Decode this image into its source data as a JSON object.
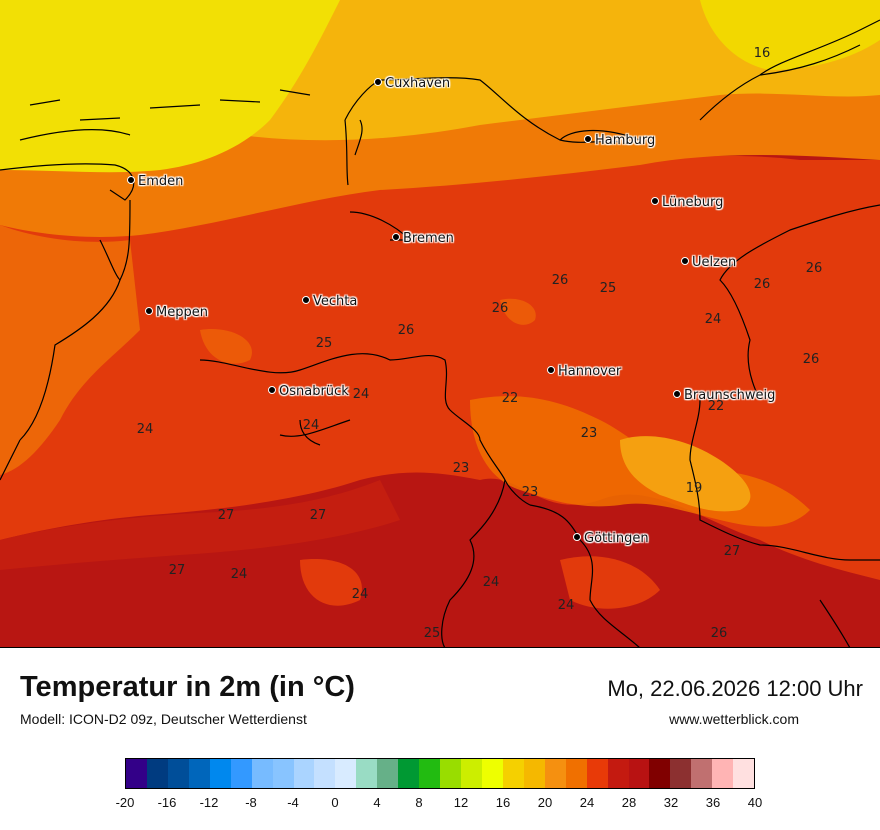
{
  "header": {
    "title": "Temperatur in 2m (in °C)",
    "subtitle": "Modell: ICON-D2 09z, Deutscher Wetterdienst",
    "datetime": "Mo, 22.06.2026 12:00 Uhr",
    "website": "www.wetterblick.com"
  },
  "cities": [
    {
      "name": "Cuxhaven"
    },
    {
      "name": "Hamburg"
    },
    {
      "name": "Emden"
    },
    {
      "name": "Lüneburg"
    },
    {
      "name": "Bremen"
    },
    {
      "name": "Uelzen"
    },
    {
      "name": "Meppen"
    },
    {
      "name": "Vechta"
    },
    {
      "name": "Hannover"
    },
    {
      "name": "Osnabrück"
    },
    {
      "name": "Braunschweig"
    },
    {
      "name": "Göttingen"
    }
  ],
  "values": [
    "16",
    "26",
    "25",
    "26",
    "26",
    "24",
    "26",
    "26",
    "25",
    "24",
    "22",
    "22",
    "24",
    "24",
    "23",
    "23",
    "23",
    "19",
    "27",
    "27",
    "27",
    "24",
    "24",
    "24",
    "24",
    "27",
    "25",
    "26",
    "26"
  ],
  "legend": {
    "colors": [
      "#330088",
      "#003b80",
      "#004e99",
      "#0066bb",
      "#0088ee",
      "#3399ff",
      "#77bbff",
      "#88c4ff",
      "#aad4ff",
      "#c4e0ff",
      "#d8ebff",
      "#99dcc4",
      "#66b088",
      "#009933",
      "#22bb11",
      "#99dd00",
      "#ccee00",
      "#eeff00",
      "#f5d000",
      "#f5b800",
      "#f59010",
      "#f07000",
      "#e83a08",
      "#c41a10",
      "#b81212",
      "#800000",
      "#8c3030",
      "#c07070",
      "#ffb4b4",
      "#ffe0e0"
    ],
    "ticks": [
      "-20",
      "-16",
      "-12",
      "-8",
      "-4",
      "0",
      "4",
      "8",
      "12",
      "16",
      "20",
      "24",
      "28",
      "32",
      "36",
      "40"
    ]
  }
}
